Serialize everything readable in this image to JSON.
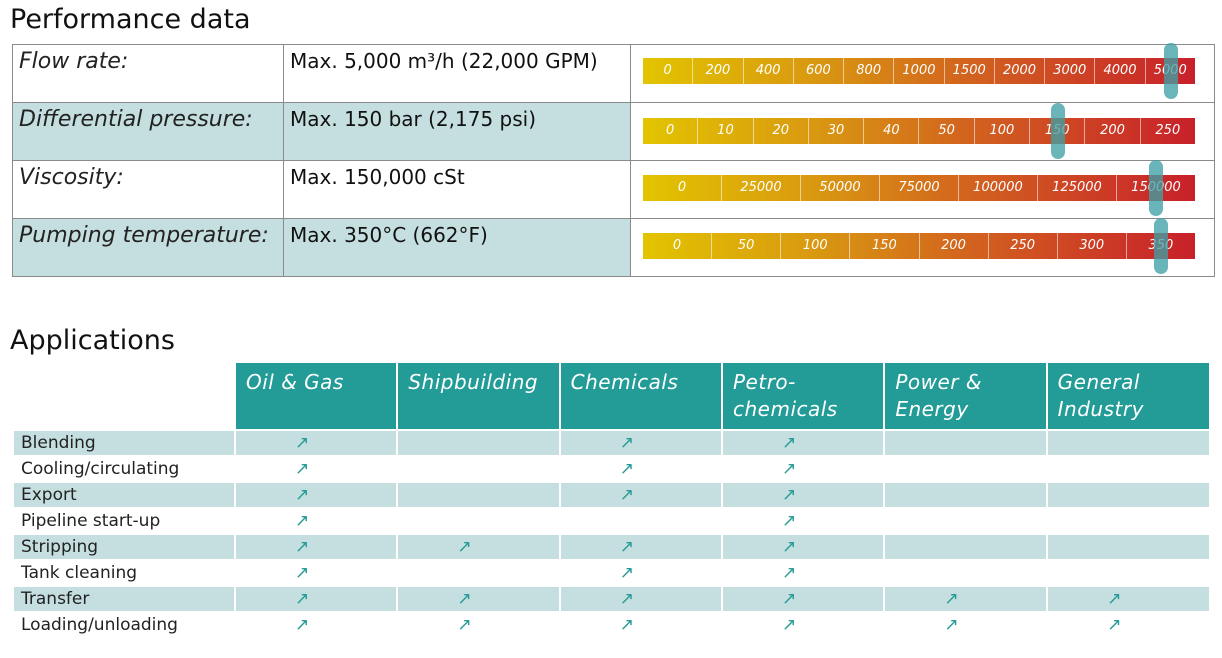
{
  "performance": {
    "heading": "Performance data",
    "rows": [
      {
        "label": "Flow rate:",
        "value": "Max. 5,000 m³/h (22,000 GPM)",
        "ticks": [
          "0",
          "200",
          "400",
          "600",
          "800",
          "1000",
          "1500",
          "2000",
          "3000",
          "4000",
          "5000"
        ],
        "marker_tick": "5000"
      },
      {
        "label": "Differential pressure:",
        "value": "Max. 150 bar (2,175 psi)",
        "ticks": [
          "0",
          "10",
          "20",
          "30",
          "40",
          "50",
          "100",
          "150",
          "200",
          "250"
        ],
        "marker_tick": "150"
      },
      {
        "label": "Viscosity:",
        "value": "Max. 150,000 cSt",
        "ticks": [
          "0",
          "25000",
          "50000",
          "75000",
          "100000",
          "125000",
          "150000"
        ],
        "marker_tick": "150000"
      },
      {
        "label": "Pumping temperature:",
        "value": "Max. 350°C (662°F)",
        "ticks": [
          "0",
          "50",
          "100",
          "150",
          "200",
          "250",
          "300",
          "350"
        ],
        "marker_tick": "350"
      }
    ]
  },
  "applications": {
    "heading": "Applications",
    "columns": [
      "Oil & Gas",
      "Shipbuilding",
      "Chemicals",
      "Petro-\nchemicals",
      "Power &\nEnergy",
      "General\nIndustry"
    ],
    "rows": [
      {
        "label": "Blending",
        "marks": [
          true,
          false,
          true,
          true,
          false,
          false
        ]
      },
      {
        "label": "Cooling/circulating",
        "marks": [
          true,
          false,
          true,
          true,
          false,
          false
        ]
      },
      {
        "label": "Export",
        "marks": [
          true,
          false,
          true,
          true,
          false,
          false
        ]
      },
      {
        "label": "Pipeline start-up",
        "marks": [
          true,
          false,
          false,
          true,
          false,
          false
        ]
      },
      {
        "label": "Stripping",
        "marks": [
          true,
          true,
          true,
          true,
          false,
          false
        ]
      },
      {
        "label": "Tank cleaning",
        "marks": [
          true,
          false,
          true,
          true,
          false,
          false
        ]
      },
      {
        "label": "Transfer",
        "marks": [
          true,
          true,
          true,
          true,
          true,
          true
        ]
      },
      {
        "label": "Loading/unloading",
        "marks": [
          true,
          true,
          true,
          true,
          true,
          true
        ]
      }
    ],
    "mark_symbol": "↗",
    "accent_color": "#239b96"
  }
}
